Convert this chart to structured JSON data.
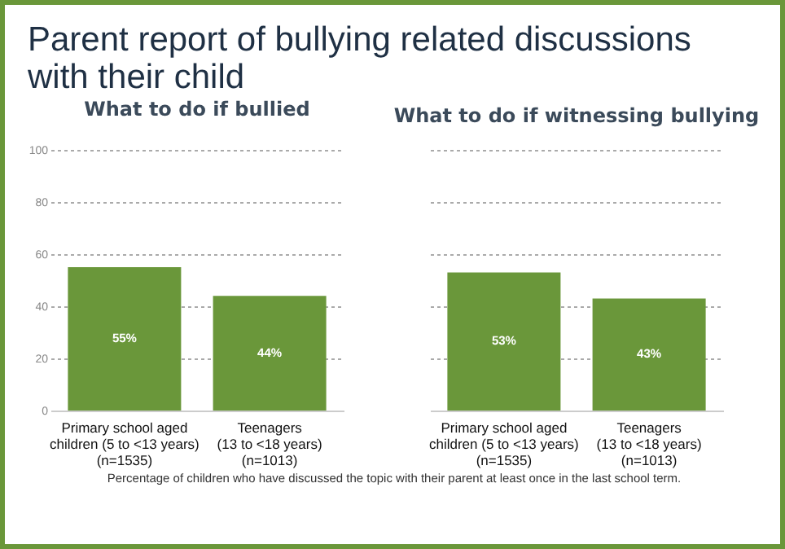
{
  "chart_data": [
    {
      "type": "bar",
      "title": "Parent report of bullying related discussions with their child",
      "subtitle": "What to do if bullied",
      "categories": [
        "Primary school aged\nchildren (5 to <13 years)\n(n=1535)",
        "Teenagers\n(13 to <18 years)\n(n=1013)"
      ],
      "values": [
        55,
        44
      ],
      "value_labels": [
        "55%",
        "44%"
      ],
      "color": "#6a973a",
      "ylim": [
        0,
        100
      ],
      "yticks": [
        0,
        20,
        40,
        60,
        80,
        100
      ],
      "grid": "y",
      "annotations": [
        "Percentage of children who have discussed the topic with their parent at least once in the last school term."
      ]
    },
    {
      "type": "bar",
      "subtitle": "What to do if witnessing bullying",
      "categories": [
        "Primary school aged\nchildren (5 to <13 years)\n(n=1535)",
        "Teenagers\n(13 to <18 years)\n(n=1013)"
      ],
      "values": [
        53,
        43
      ],
      "value_labels": [
        "53%",
        "43%"
      ],
      "color": "#6a973a",
      "ylim": [
        0,
        100
      ],
      "yticks": [
        0,
        20,
        40,
        60,
        80,
        100
      ],
      "grid": "y",
      "tick_labels": "x"
    }
  ]
}
